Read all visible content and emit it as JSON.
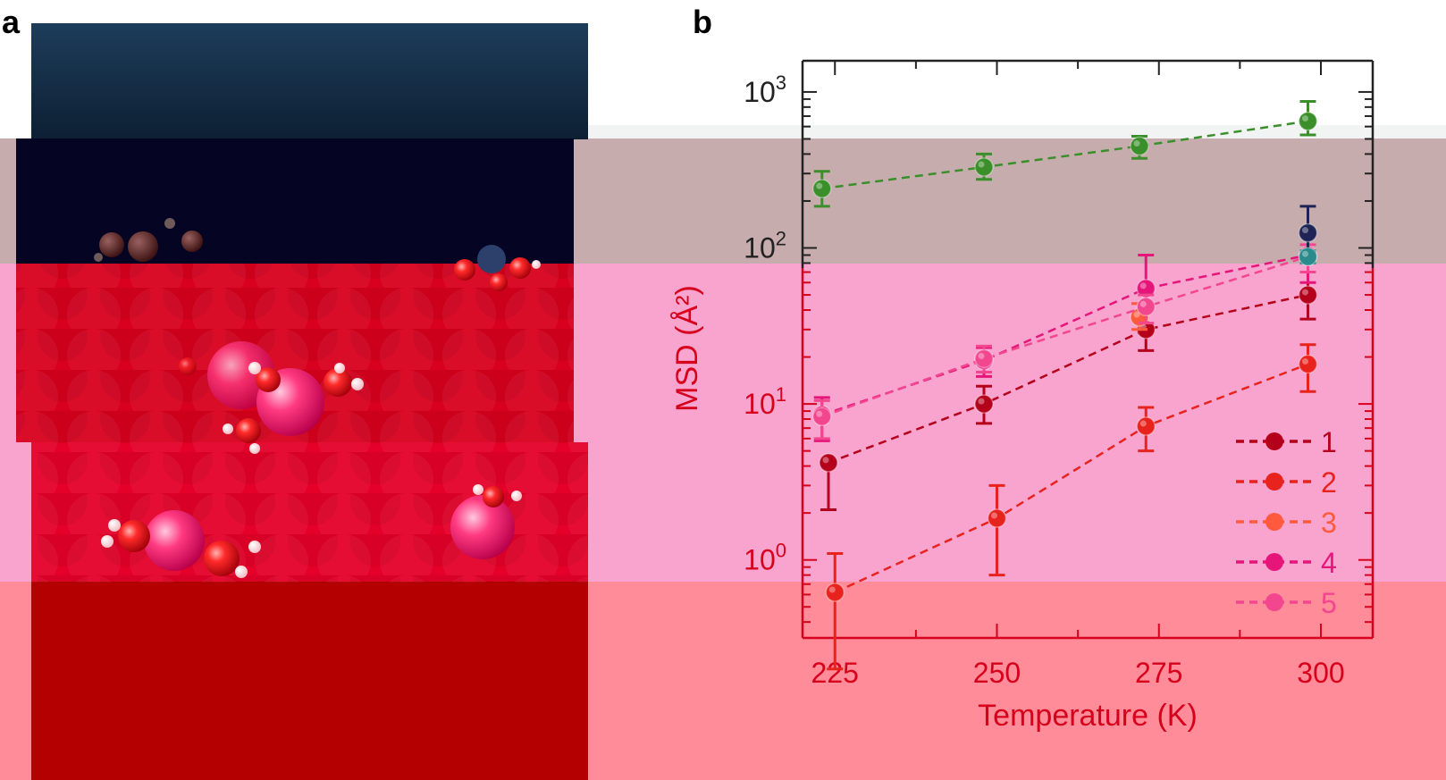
{
  "panels": {
    "a": "a",
    "b": "b"
  },
  "colors": {
    "series_1": "#b5001c",
    "series_2": "#e8231e",
    "series_3": "#ff5a3d",
    "series_4": "#e6157a",
    "series_5": "#f2478f",
    "series_green": "#3b8f2a",
    "series_navy": "#1e2455",
    "series_teal": "#2a8a8c",
    "band_pink": "#f9a3cf",
    "band_mauve": "#c7acae",
    "band_bottom": "#ff8c98",
    "axis_dark": "#222222",
    "axis_red": "#d6001c"
  },
  "image_a": {
    "description_icons": [
      "water-molecule-icon",
      "ice-surface"
    ]
  },
  "chart_data": {
    "type": "scatter",
    "xlabel": "Temperature (K)",
    "ylabel": "MSD (Å²)",
    "xlim": [
      220,
      308
    ],
    "ylim_log10": [
      -0.5,
      3.2
    ],
    "yscale": "log",
    "xticks": [
      225,
      250,
      275,
      300
    ],
    "xtick_labels": [
      "225",
      "250",
      "275",
      "300"
    ],
    "yticks": [
      {
        "base": "10",
        "exp": "0",
        "value": 1
      },
      {
        "base": "10",
        "exp": "1",
        "value": 10
      },
      {
        "base": "10",
        "exp": "2",
        "value": 100
      },
      {
        "base": "10",
        "exp": "3",
        "value": 1000
      }
    ],
    "legend_position": "lower-right",
    "series": [
      {
        "name": "1",
        "color_key": "series_1",
        "x": [
          224,
          248,
          273,
          298
        ],
        "y": [
          4.2,
          10,
          30,
          50
        ],
        "err": [
          [
            2.1,
            7.5,
            22,
            35
          ],
          [
            4.2,
            13,
            40,
            70
          ]
        ],
        "in_legend": true
      },
      {
        "name": "2",
        "color_key": "series_2",
        "x": [
          225,
          250,
          273,
          298
        ],
        "y": [
          0.62,
          1.85,
          7.2,
          18
        ],
        "err": [
          [
            0.2,
            0.8,
            5,
            12
          ],
          [
            1.1,
            3,
            9.5,
            24
          ]
        ],
        "in_legend": true
      },
      {
        "name": "3",
        "color_key": "series_3",
        "x": [
          272
        ],
        "y": [
          36
        ],
        "err": [
          [
            30
          ],
          [
            44
          ]
        ],
        "in_legend": true
      },
      {
        "name": "4",
        "color_key": "series_4",
        "x": [
          223,
          248,
          273,
          298
        ],
        "y": [
          8.5,
          19,
          55,
          90
        ],
        "err": [
          [
            5.8,
            15,
            40,
            60
          ],
          [
            11,
            23,
            90,
            120
          ]
        ],
        "in_legend": true
      },
      {
        "name": "5",
        "color_key": "series_5",
        "x": [
          223,
          248,
          273,
          298
        ],
        "y": [
          8.3,
          19.5,
          42,
          88
        ],
        "err": [
          [
            6,
            16,
            33,
            70
          ],
          [
            10.5,
            23.5,
            50,
            105
          ]
        ],
        "in_legend": true
      },
      {
        "name": "",
        "color_key": "series_green",
        "x": [
          223,
          248,
          272,
          298
        ],
        "y": [
          240,
          330,
          450,
          650
        ],
        "err": [
          [
            185,
            275,
            375,
            530
          ],
          [
            310,
            400,
            520,
            870
          ]
        ],
        "in_legend": false
      },
      {
        "name": "",
        "color_key": "series_navy",
        "x": [
          298
        ],
        "y": [
          125
        ],
        "err": [
          [
            95
          ],
          [
            185
          ]
        ],
        "in_legend": false
      },
      {
        "name": "",
        "color_key": "series_teal",
        "x": [
          298
        ],
        "y": [
          88
        ],
        "err": [
          [
            80
          ],
          [
            96
          ]
        ],
        "in_legend": false
      }
    ]
  }
}
